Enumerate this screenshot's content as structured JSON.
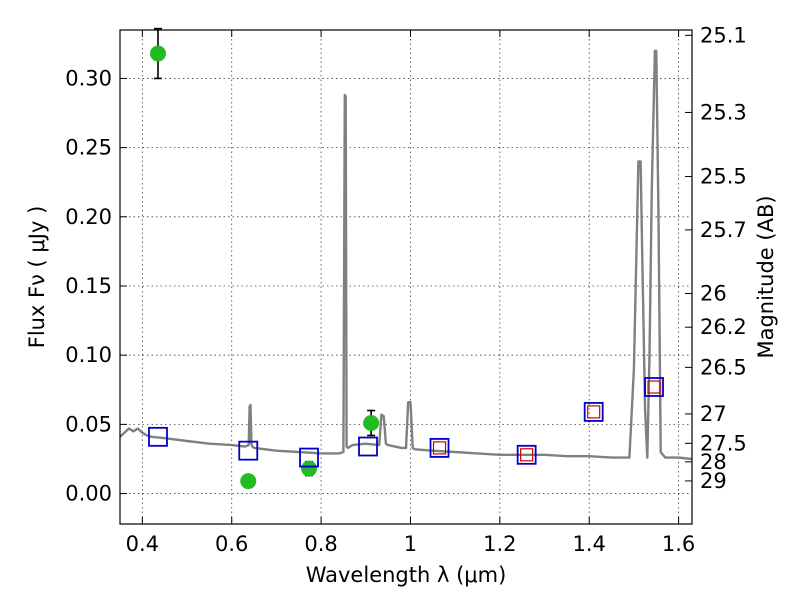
{
  "chart_data": {
    "type": "scatter",
    "title": "",
    "xlabel": "Wavelength  λ (μm)",
    "ylabel": "Flux  Fν  ( μJy )",
    "ylabel_right": "Magnitude (AB)",
    "xlim": [
      0.35,
      1.63
    ],
    "ylim": [
      -0.022,
      0.335
    ],
    "grid": true,
    "x_ticks": [
      {
        "value": 0.4,
        "label": "0.4"
      },
      {
        "value": 0.6,
        "label": "0.6"
      },
      {
        "value": 0.8,
        "label": "0.8"
      },
      {
        "value": 1.0,
        "label": "1"
      },
      {
        "value": 1.2,
        "label": "1.2"
      },
      {
        "value": 1.4,
        "label": "1.4"
      },
      {
        "value": 1.6,
        "label": "1.6"
      }
    ],
    "y_ticks": [
      {
        "value": 0.0,
        "label": "0.00"
      },
      {
        "value": 0.05,
        "label": "0.05"
      },
      {
        "value": 0.1,
        "label": "0.10"
      },
      {
        "value": 0.15,
        "label": "0.15"
      },
      {
        "value": 0.2,
        "label": "0.20"
      },
      {
        "value": 0.25,
        "label": "0.25"
      },
      {
        "value": 0.3,
        "label": "0.30"
      }
    ],
    "right_ticks": [
      {
        "mag": 25.1,
        "label": "25.1"
      },
      {
        "mag": 25.3,
        "label": "25.3"
      },
      {
        "mag": 25.5,
        "label": "25.5"
      },
      {
        "mag": 25.7,
        "label": "25.7"
      },
      {
        "mag": 26,
        "label": "26"
      },
      {
        "mag": 26.2,
        "label": "26.2"
      },
      {
        "mag": 26.5,
        "label": "26.5"
      },
      {
        "mag": 27,
        "label": "27"
      },
      {
        "mag": 27.5,
        "label": "27.5"
      },
      {
        "mag": 28,
        "label": "28"
      },
      {
        "mag": 29,
        "label": "29"
      }
    ],
    "series": [
      {
        "kind": "line",
        "color": "#808080",
        "x": [
          0.35,
          0.37,
          0.38,
          0.39,
          0.4,
          0.41,
          0.42,
          0.45,
          0.5,
          0.55,
          0.6,
          0.63,
          0.638,
          0.64,
          0.642,
          0.644,
          0.646,
          0.65,
          0.7,
          0.75,
          0.8,
          0.84,
          0.85,
          0.853,
          0.855,
          0.857,
          0.86,
          0.865,
          0.87,
          0.9,
          0.93,
          0.935,
          0.94,
          0.945,
          0.95,
          0.98,
          0.99,
          0.995,
          1.0,
          1.005,
          1.01,
          1.05,
          1.1,
          1.15,
          1.2,
          1.25,
          1.3,
          1.35,
          1.4,
          1.45,
          1.49,
          1.5,
          1.51,
          1.515,
          1.52,
          1.525,
          1.53,
          1.535,
          1.54,
          1.547,
          1.55,
          1.555,
          1.56,
          1.57,
          1.6,
          1.63
        ],
        "y": [
          0.041,
          0.047,
          0.045,
          0.047,
          0.044,
          0.042,
          0.041,
          0.04,
          0.038,
          0.036,
          0.035,
          0.034,
          0.035,
          0.063,
          0.064,
          0.036,
          0.034,
          0.033,
          0.031,
          0.03,
          0.029,
          0.029,
          0.03,
          0.288,
          0.287,
          0.034,
          0.033,
          0.034,
          0.035,
          0.036,
          0.035,
          0.057,
          0.056,
          0.036,
          0.035,
          0.033,
          0.033,
          0.066,
          0.066,
          0.033,
          0.032,
          0.031,
          0.03,
          0.029,
          0.028,
          0.028,
          0.028,
          0.027,
          0.027,
          0.026,
          0.026,
          0.09,
          0.24,
          0.24,
          0.15,
          0.06,
          0.026,
          0.1,
          0.22,
          0.32,
          0.32,
          0.2,
          0.03,
          0.026,
          0.026,
          0.025
        ]
      },
      {
        "kind": "observed",
        "color": "#22bb22",
        "x": [
          0.435,
          0.637,
          0.773,
          0.912
        ],
        "y": [
          0.318,
          0.009,
          0.018,
          0.051
        ],
        "yerr": [
          0.018,
          0.004,
          0.005,
          0.009
        ]
      },
      {
        "kind": "model",
        "color": "#0000cc",
        "x": [
          0.435,
          0.637,
          0.773,
          0.905,
          1.065,
          1.26,
          1.41,
          1.545
        ],
        "y": [
          0.041,
          0.031,
          0.026,
          0.034,
          0.033,
          0.028,
          0.059,
          0.077
        ]
      },
      {
        "kind": "model-nir",
        "color": "#cc0000",
        "x": [
          1.065,
          1.26,
          1.41,
          1.545
        ],
        "y": [
          0.033,
          0.028,
          0.059,
          0.077
        ]
      }
    ]
  }
}
